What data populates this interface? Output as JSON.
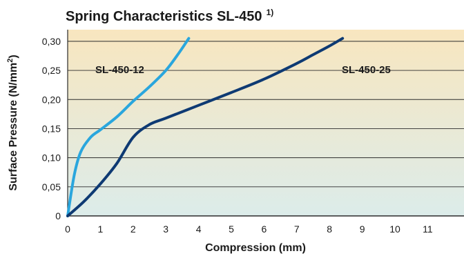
{
  "chart_data": {
    "type": "line",
    "title": "Spring Characteristics SL-450",
    "title_superscript": "1)",
    "xlabel": "Compression (mm)",
    "ylabel": "Surface Pressure (N/mm",
    "ylabel_superscript": "2",
    "ylabel_suffix": ")",
    "xlim": [
      0,
      12
    ],
    "ylim": [
      0,
      0.32
    ],
    "x_ticks": [
      0,
      1,
      2,
      3,
      4,
      5,
      6,
      7,
      8,
      9,
      10,
      11
    ],
    "x_tick_labels": [
      "0",
      "1",
      "2",
      "3",
      "4",
      "5",
      "6",
      "7",
      "8",
      "9",
      "10",
      "11"
    ],
    "y_ticks": [
      0,
      0.05,
      0.1,
      0.15,
      0.2,
      0.25,
      0.3
    ],
    "y_tick_labels": [
      "0",
      "0,05",
      "0,10",
      "0,15",
      "0,20",
      "0,25",
      "0,30"
    ],
    "grid": "horizontal",
    "background_gradient": [
      "#f8e6bf",
      "#dcecea"
    ],
    "series": [
      {
        "name": "SL-450-12",
        "color": "#2aa6dd",
        "x": [
          0,
          0.2,
          0.4,
          0.7,
          1.0,
          1.5,
          2.0,
          2.5,
          3.0,
          3.4,
          3.7
        ],
        "y": [
          0,
          0.07,
          0.11,
          0.135,
          0.148,
          0.17,
          0.197,
          0.222,
          0.25,
          0.28,
          0.305
        ]
      },
      {
        "name": "SL-450-25",
        "color": "#0e3a73",
        "x": [
          0,
          0.5,
          1.0,
          1.5,
          2.0,
          2.5,
          3.0,
          4.0,
          5.0,
          6.0,
          7.0,
          7.5,
          8.0,
          8.4
        ],
        "y": [
          0,
          0.025,
          0.055,
          0.09,
          0.135,
          0.157,
          0.168,
          0.19,
          0.212,
          0.235,
          0.262,
          0.277,
          0.292,
          0.305
        ]
      }
    ]
  }
}
